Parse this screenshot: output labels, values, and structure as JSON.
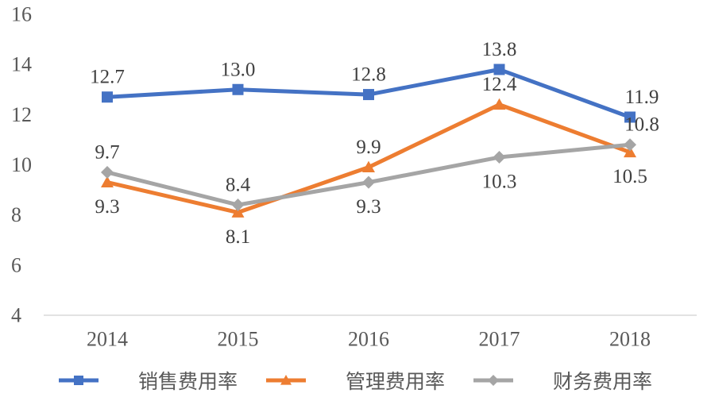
{
  "chart_data": {
    "type": "line",
    "title": "",
    "xlabel": "",
    "ylabel": "",
    "categories": [
      "2014",
      "2015",
      "2016",
      "2017",
      "2018"
    ],
    "series": [
      {
        "name": "销售费用率",
        "color": "#4472C4",
        "marker": "square",
        "values": [
          12.7,
          13.0,
          12.8,
          13.8,
          11.9
        ],
        "label_positions": [
          "above",
          "above",
          "above",
          "above",
          "above-right"
        ]
      },
      {
        "name": "管理费用率",
        "color": "#ED7D31",
        "marker": "triangle",
        "values": [
          9.3,
          8.1,
          9.9,
          12.4,
          10.5
        ],
        "label_positions": [
          "below",
          "below",
          "above",
          "above",
          "below"
        ]
      },
      {
        "name": "财务费用率",
        "color": "#A5A5A5",
        "marker": "diamond",
        "values": [
          9.7,
          8.4,
          9.3,
          10.3,
          10.8
        ],
        "label_positions": [
          "above",
          "above",
          "below",
          "below",
          "above-right"
        ]
      }
    ],
    "ylim": [
      4,
      16
    ],
    "yticks": [
      4,
      6,
      8,
      10,
      12,
      14,
      16
    ],
    "grid": false,
    "legend_position": "bottom",
    "data_label_decimals": 1,
    "axis_line_color": "#D9D9D9",
    "tick_label_color": "#595959",
    "data_label_color": "#404040"
  }
}
